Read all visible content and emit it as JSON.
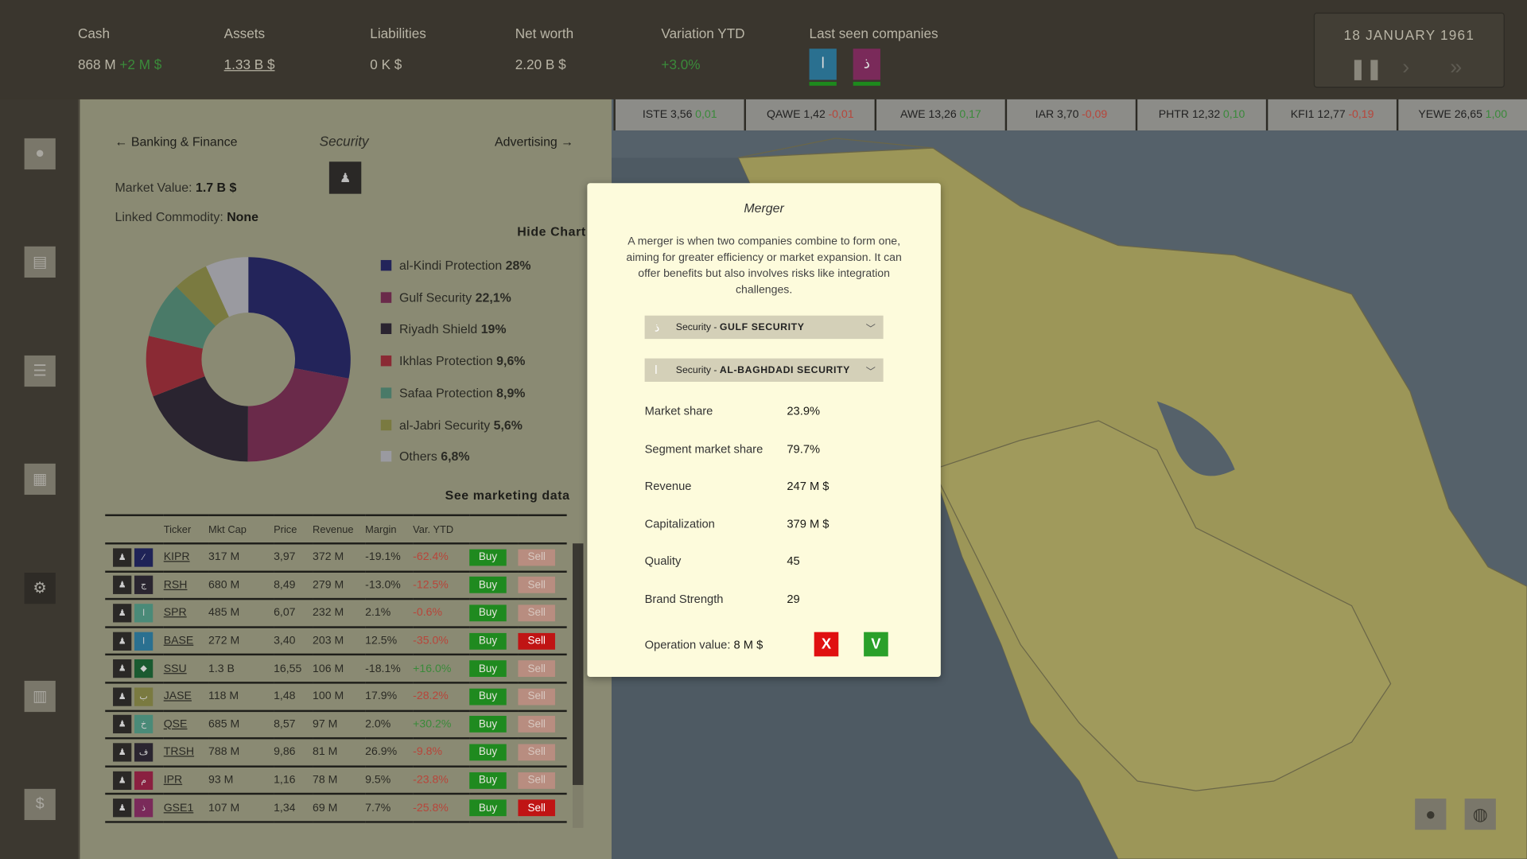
{
  "topbar": {
    "cash": {
      "label": "Cash",
      "value": "868 M",
      "delta": "+2 M $"
    },
    "assets": {
      "label": "Assets",
      "value": "1.33 B $"
    },
    "liabilities": {
      "label": "Liabilities",
      "value": "0 K $"
    },
    "net_worth": {
      "label": "Net worth",
      "value": "2.20 B $"
    },
    "variation": {
      "label": "Variation YTD",
      "value": "+3.0%"
    },
    "last_seen": {
      "label": "Last seen companies",
      "items": [
        {
          "glyph": "ا",
          "color": "#2a7090"
        },
        {
          "glyph": "ذ",
          "color": "#7a2a5a"
        }
      ]
    },
    "date": "18 JANUARY 1961",
    "controls": {
      "pause": "pause-icon",
      "play": "play-icon",
      "fast": "fast-forward-icon"
    }
  },
  "sidebar": {
    "items": [
      {
        "icon": "person-icon"
      },
      {
        "icon": "passport-icon"
      },
      {
        "icon": "database-icon"
      },
      {
        "icon": "documents-icon"
      },
      {
        "icon": "gears-icon",
        "active": true
      },
      {
        "icon": "building-icon"
      },
      {
        "icon": "money-icon"
      }
    ]
  },
  "ticker": [
    {
      "name": "ISTE 3,56",
      "delta": "0,01",
      "up": true
    },
    {
      "name": "QAWE 1,42",
      "delta": "-0,01",
      "up": false
    },
    {
      "name": "AWE 13,26",
      "delta": "0,17",
      "up": true
    },
    {
      "name": "IAR 3,70",
      "delta": "-0,09",
      "up": false
    },
    {
      "name": "PHTR 12,32",
      "delta": "0,10",
      "up": true
    },
    {
      "name": "KFI1 12,77",
      "delta": "-0,19",
      "up": false
    },
    {
      "name": "YEWE 26,65",
      "delta": "1,00",
      "up": true
    }
  ],
  "sector": {
    "prev": "← Banking & Finance",
    "title": "Security",
    "next": "Advertising →",
    "market_value_label": "Market Value:",
    "market_value": "1.7 B $",
    "commodity_label": "Linked Commodity:",
    "commodity": "None",
    "hide_chart": "Hide Chart",
    "see_marketing": "See marketing data"
  },
  "chart_data": {
    "type": "pie",
    "donut": true,
    "categories": [
      "al-Kindi Protection",
      "Gulf Security",
      "Riyadh Shield",
      "Ikhlas Protection",
      "Safaa Protection",
      "al-Jabri Security",
      "Others"
    ],
    "labels": [
      "28%",
      "22,1%",
      "19%",
      "9,6%",
      "8,9%",
      "5,6%",
      "6,8%"
    ],
    "values": [
      28,
      22.1,
      19,
      9.6,
      8.9,
      5.6,
      6.8
    ],
    "colors": [
      "#23245a",
      "#6a2a4a",
      "#2a2430",
      "#8a2a34",
      "#4a7a68",
      "#7a7a40",
      "#9a9aa0"
    ],
    "legend": "right"
  },
  "table": {
    "headers": [
      "Ticker",
      "Mkt Cap",
      "Price",
      "Revenue",
      "Margin",
      "Var. YTD"
    ],
    "buy": "Buy",
    "sell": "Sell",
    "rows": [
      {
        "glyph": "⁄",
        "color": "#1f2357",
        "ticker": "KIPR",
        "cap": "317 M",
        "price": "3,97",
        "rev": "372 M",
        "margin": "-19.1%",
        "var": "-62.4%",
        "up": false,
        "sell": false
      },
      {
        "glyph": "ج",
        "color": "#2a2530",
        "ticker": "RSH",
        "cap": "680 M",
        "price": "8,49",
        "rev": "279 M",
        "margin": "-13.0%",
        "var": "-12.5%",
        "up": false,
        "sell": false
      },
      {
        "glyph": "ا",
        "color": "#4a8a78",
        "ticker": "SPR",
        "cap": "485 M",
        "price": "6,07",
        "rev": "232 M",
        "margin": "2.1%",
        "var": "-0.6%",
        "up": false,
        "sell": false
      },
      {
        "glyph": "ا",
        "color": "#2a7090",
        "ticker": "BASE",
        "cap": "272 M",
        "price": "3,40",
        "rev": "203 M",
        "margin": "12.5%",
        "var": "-35.0%",
        "up": false,
        "sell": true
      },
      {
        "glyph": "◆",
        "color": "#1a5a30",
        "ticker": "SSU",
        "cap": "1.3 B",
        "price": "16,55",
        "rev": "106 M",
        "margin": "-18.1%",
        "var": "+16.0%",
        "up": true,
        "sell": false
      },
      {
        "glyph": "ب",
        "color": "#7a7a40",
        "ticker": "JASE",
        "cap": "118 M",
        "price": "1,48",
        "rev": "100 M",
        "margin": "17.9%",
        "var": "-28.2%",
        "up": false,
        "sell": false
      },
      {
        "glyph": "خ",
        "color": "#4a8a78",
        "ticker": "QSE",
        "cap": "685 M",
        "price": "8,57",
        "rev": "97 M",
        "margin": "2.0%",
        "var": "+30.2%",
        "up": true,
        "sell": false
      },
      {
        "glyph": "ف",
        "color": "#2a2530",
        "ticker": "TRSH",
        "cap": "788 M",
        "price": "9,86",
        "rev": "81 M",
        "margin": "26.9%",
        "var": "-9.8%",
        "up": false,
        "sell": false
      },
      {
        "glyph": "م",
        "color": "#8a2040",
        "ticker": "IPR",
        "cap": "93 M",
        "price": "1,16",
        "rev": "78 M",
        "margin": "9.5%",
        "var": "-23.8%",
        "up": false,
        "sell": false
      },
      {
        "glyph": "ذ",
        "color": "#7a2a5a",
        "ticker": "GSE1",
        "cap": "107 M",
        "price": "1,34",
        "rev": "69 M",
        "margin": "7.7%",
        "var": "-25.8%",
        "up": false,
        "sell": true
      }
    ]
  },
  "modal": {
    "title": "Merger",
    "description": "A merger is when two companies combine to form one, aiming for greater efficiency or market expansion. It can offer benefits but also involves risks like integration challenges.",
    "select1": {
      "glyph": "ذ",
      "prefix": "Security - ",
      "value": "GULF SECURITY"
    },
    "select2": {
      "glyph": "ا",
      "prefix": "Security - ",
      "value": "AL-BAGHDADI SECURITY"
    },
    "stats": [
      {
        "label": "Market share",
        "value": "23.9%"
      },
      {
        "label": "Segment market share",
        "value": "79.7%"
      },
      {
        "label": "Revenue",
        "value": "247 M $"
      },
      {
        "label": "Capitalization",
        "value": "379 M $"
      },
      {
        "label": "Quality",
        "value": "45"
      },
      {
        "label": "Brand Strength",
        "value": "29"
      }
    ],
    "op_label": "Operation value:",
    "op_value": "8 M $",
    "cancel": "X",
    "confirm": "V"
  }
}
